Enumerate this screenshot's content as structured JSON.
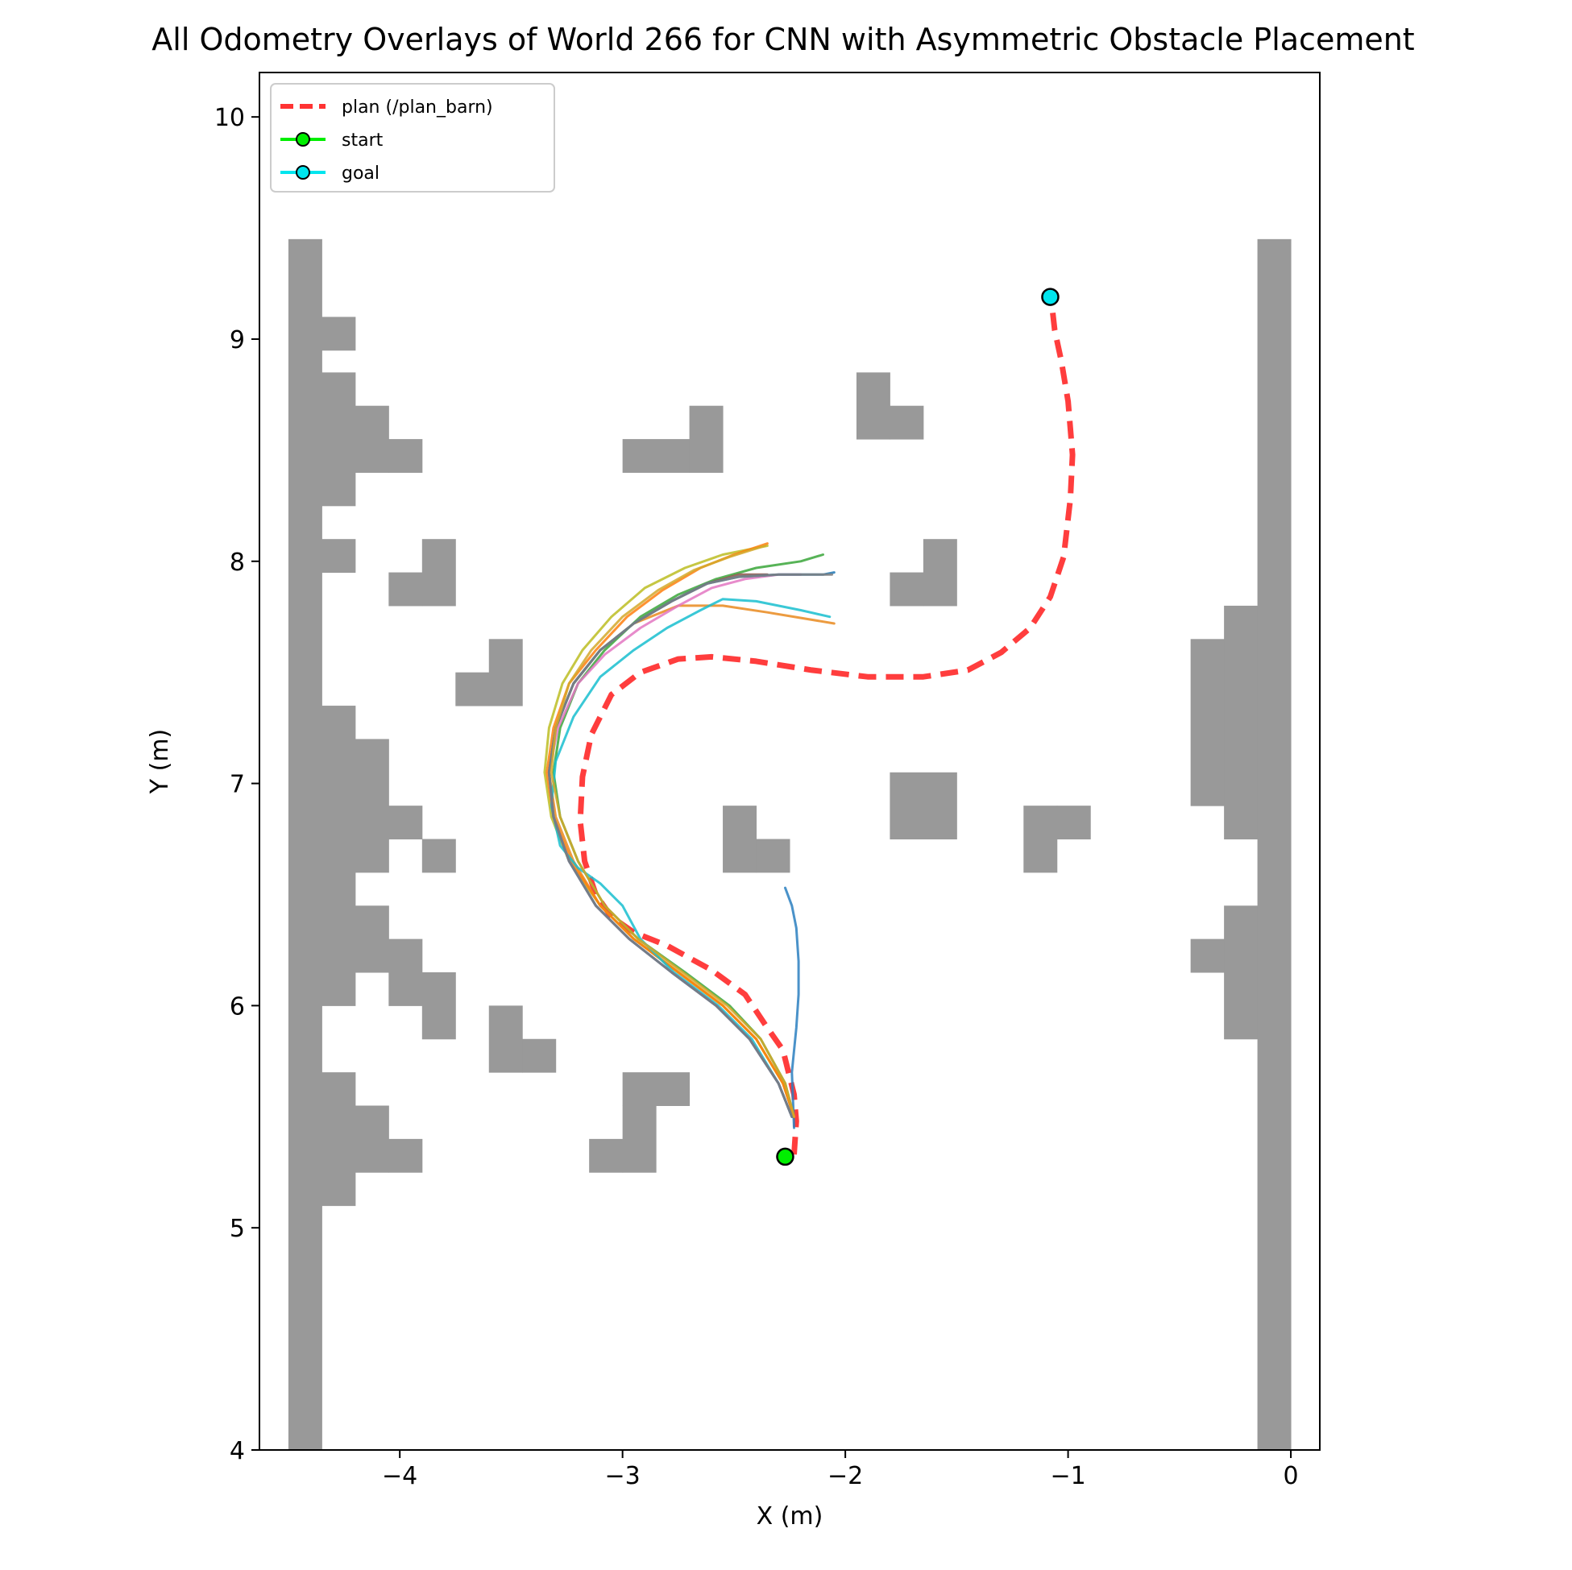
{
  "chart_data": {
    "type": "line",
    "title": "All Odometry Overlays of World 266 for CNN with Asymmetric Obstacle Placement",
    "xlabel": "X (m)",
    "ylabel": "Y (m)",
    "xlim": [
      -4.63,
      0.13
    ],
    "ylim": [
      4.0,
      10.2
    ],
    "x_ticks": [
      -4,
      -3,
      -2,
      -1,
      0
    ],
    "x_tick_labels": [
      "−4",
      "−3",
      "−2",
      "−1",
      "0"
    ],
    "y_ticks": [
      4,
      5,
      6,
      7,
      8,
      9,
      10
    ],
    "y_tick_labels": [
      "4",
      "5",
      "6",
      "7",
      "8",
      "9",
      "10"
    ],
    "grid": false,
    "legend": {
      "placement": "top-left",
      "entries": [
        {
          "label": "plan (/plan_barn)",
          "color": "#ff3333",
          "style": "dashed"
        },
        {
          "label": "start",
          "color": "#00ee00",
          "style": "line-marker"
        },
        {
          "label": "goal",
          "color": "#00e5ee",
          "style": "line-marker"
        }
      ]
    },
    "obstacle_color": "#999999",
    "obstacles": [
      [
        -4.5,
        4.0,
        0.15,
        5.45
      ],
      [
        -4.35,
        8.95,
        0.15,
        0.15
      ],
      [
        -4.35,
        8.25,
        0.15,
        0.6
      ],
      [
        -4.2,
        8.4,
        0.15,
        0.3
      ],
      [
        -4.05,
        8.4,
        0.15,
        0.15
      ],
      [
        -4.35,
        7.95,
        0.15,
        0.15
      ],
      [
        -4.05,
        7.8,
        0.15,
        0.15
      ],
      [
        -3.9,
        7.8,
        0.15,
        0.3
      ],
      [
        -3.75,
        7.35,
        0.15,
        0.15
      ],
      [
        -3.6,
        7.35,
        0.15,
        0.3
      ],
      [
        -3.0,
        8.4,
        0.3,
        0.15
      ],
      [
        -2.7,
        8.4,
        0.15,
        0.3
      ],
      [
        -1.95,
        8.55,
        0.15,
        0.3
      ],
      [
        -1.8,
        8.55,
        0.15,
        0.15
      ],
      [
        -1.8,
        7.8,
        0.15,
        0.15
      ],
      [
        -1.65,
        7.8,
        0.15,
        0.3
      ],
      [
        -4.35,
        6.6,
        0.15,
        0.75
      ],
      [
        -4.2,
        6.6,
        0.15,
        0.6
      ],
      [
        -4.05,
        6.75,
        0.15,
        0.15
      ],
      [
        -3.9,
        6.6,
        0.15,
        0.15
      ],
      [
        -2.55,
        6.6,
        0.15,
        0.3
      ],
      [
        -2.4,
        6.6,
        0.15,
        0.15
      ],
      [
        -1.8,
        6.75,
        0.3,
        0.3
      ],
      [
        -1.2,
        6.6,
        0.15,
        0.3
      ],
      [
        -1.05,
        6.75,
        0.15,
        0.15
      ],
      [
        -0.45,
        6.9,
        0.15,
        0.75
      ],
      [
        -0.3,
        6.75,
        0.15,
        1.05
      ],
      [
        -4.35,
        6.0,
        0.15,
        0.6
      ],
      [
        -4.2,
        6.15,
        0.15,
        0.3
      ],
      [
        -4.05,
        6.0,
        0.15,
        0.3
      ],
      [
        -3.9,
        5.85,
        0.15,
        0.3
      ],
      [
        -3.6,
        5.7,
        0.15,
        0.3
      ],
      [
        -3.45,
        5.7,
        0.15,
        0.15
      ],
      [
        -4.35,
        5.1,
        0.15,
        0.6
      ],
      [
        -4.2,
        5.25,
        0.15,
        0.3
      ],
      [
        -4.05,
        5.25,
        0.15,
        0.15
      ],
      [
        -3.0,
        5.55,
        0.3,
        0.15
      ],
      [
        -3.0,
        5.25,
        0.15,
        0.3
      ],
      [
        -2.85,
        5.25,
        0.0,
        0.0
      ],
      [
        -3.15,
        5.25,
        0.15,
        0.15
      ],
      [
        -0.45,
        6.15,
        0.15,
        0.15
      ],
      [
        -0.3,
        5.85,
        0.15,
        0.6
      ],
      [
        -0.15,
        4.0,
        0.15,
        5.45
      ]
    ],
    "plan": {
      "name": "plan (/plan_barn)",
      "color": "#ff3333",
      "x": [
        -2.23,
        -2.22,
        -2.23,
        -2.28,
        -2.35,
        -2.45,
        -2.6,
        -2.8,
        -2.95,
        -3.05,
        -3.12,
        -3.17,
        -3.19,
        -3.18,
        -3.14,
        -3.05,
        -2.92,
        -2.75,
        -2.6,
        -2.4,
        -2.15,
        -1.9,
        -1.65,
        -1.45,
        -1.3,
        -1.17,
        -1.08,
        -1.02,
        -0.99,
        -0.98,
        -1.0,
        -1.03,
        -1.06,
        -1.07
      ],
      "y": [
        5.33,
        5.48,
        5.6,
        5.8,
        5.9,
        6.05,
        6.16,
        6.27,
        6.33,
        6.4,
        6.5,
        6.65,
        6.83,
        7.03,
        7.22,
        7.4,
        7.5,
        7.56,
        7.57,
        7.55,
        7.51,
        7.48,
        7.48,
        7.51,
        7.59,
        7.7,
        7.84,
        8.02,
        8.28,
        8.48,
        8.72,
        8.9,
        9.04,
        9.13
      ]
    },
    "start": {
      "name": "start",
      "x": -2.27,
      "y": 5.32,
      "color": "#00ee00"
    },
    "goal": {
      "name": "goal",
      "x": -1.08,
      "y": 9.19,
      "color": "#00e5ee"
    },
    "series": [
      {
        "color": "#2a7fbf",
        "x": [
          -2.23,
          -2.24,
          -2.22,
          -2.21,
          -2.21,
          -2.22,
          -2.24,
          -2.27
        ],
        "y": [
          5.45,
          5.7,
          5.9,
          6.05,
          6.2,
          6.35,
          6.45,
          6.53
        ]
      },
      {
        "color": "#e98a1f",
        "x": [
          -2.23,
          -2.28,
          -2.4,
          -2.55,
          -2.75,
          -2.95,
          -3.1,
          -3.22,
          -3.3,
          -3.33,
          -3.3,
          -3.22,
          -3.1,
          -2.95,
          -2.75,
          -2.55,
          -2.35,
          -2.05
        ],
        "y": [
          5.5,
          5.65,
          5.85,
          6.0,
          6.15,
          6.3,
          6.45,
          6.65,
          6.85,
          7.05,
          7.25,
          7.45,
          7.6,
          7.72,
          7.8,
          7.8,
          7.77,
          7.72
        ]
      },
      {
        "color": "#3aa63a",
        "x": [
          -2.23,
          -2.27,
          -2.38,
          -2.52,
          -2.72,
          -2.93,
          -3.08,
          -3.2,
          -3.28,
          -3.31,
          -3.28,
          -3.2,
          -3.08,
          -2.92,
          -2.75,
          -2.58,
          -2.4,
          -2.2,
          -2.1
        ],
        "y": [
          5.5,
          5.65,
          5.85,
          6.0,
          6.15,
          6.3,
          6.45,
          6.65,
          6.85,
          7.05,
          7.25,
          7.45,
          7.6,
          7.75,
          7.85,
          7.92,
          7.97,
          8.0,
          8.03
        ]
      },
      {
        "color": "#bcbd22",
        "x": [
          -2.23,
          -2.28,
          -2.4,
          -2.55,
          -2.75,
          -2.95,
          -3.1,
          -3.24,
          -3.32,
          -3.35,
          -3.33,
          -3.27,
          -3.18,
          -3.05,
          -2.9,
          -2.72,
          -2.55,
          -2.35
        ],
        "y": [
          5.5,
          5.65,
          5.85,
          6.0,
          6.15,
          6.3,
          6.45,
          6.65,
          6.85,
          7.05,
          7.25,
          7.45,
          7.6,
          7.75,
          7.88,
          7.97,
          8.03,
          8.07
        ]
      },
      {
        "color": "#ff7f0e",
        "x": [
          -2.23,
          -2.28,
          -2.4,
          -2.55,
          -2.75,
          -2.95,
          -3.1,
          -3.23,
          -3.31,
          -3.34,
          -3.31,
          -3.24,
          -3.12,
          -2.98,
          -2.82,
          -2.65,
          -2.5,
          -2.35
        ],
        "y": [
          5.5,
          5.65,
          5.85,
          6.0,
          6.15,
          6.3,
          6.45,
          6.65,
          6.85,
          7.05,
          7.25,
          7.45,
          7.6,
          7.75,
          7.87,
          7.97,
          8.03,
          8.08
        ]
      },
      {
        "color": "#17becf",
        "x": [
          -2.24,
          -2.3,
          -2.42,
          -2.57,
          -2.77,
          -2.92,
          -3.0,
          -3.1,
          -3.2,
          -3.28,
          -3.32,
          -3.3,
          -3.22,
          -3.1,
          -2.95,
          -2.8,
          -2.65,
          -2.55,
          -2.4,
          -2.2,
          -2.07
        ],
        "y": [
          5.5,
          5.65,
          5.85,
          6.0,
          6.15,
          6.3,
          6.45,
          6.55,
          6.62,
          6.72,
          6.9,
          7.1,
          7.3,
          7.48,
          7.6,
          7.7,
          7.78,
          7.83,
          7.82,
          7.78,
          7.75
        ]
      },
      {
        "color": "#8c564b",
        "x": [
          -2.24,
          -2.3,
          -2.43,
          -2.58,
          -2.78,
          -2.97,
          -3.12,
          -3.24,
          -3.31,
          -3.33,
          -3.3,
          -3.22,
          -3.1,
          -2.95,
          -2.78,
          -2.62,
          -2.48,
          -2.35
        ],
        "y": [
          5.5,
          5.65,
          5.85,
          6.0,
          6.15,
          6.3,
          6.45,
          6.65,
          6.85,
          7.05,
          7.25,
          7.45,
          7.6,
          7.72,
          7.82,
          7.9,
          7.94,
          7.94
        ]
      },
      {
        "color": "#e377c2",
        "x": [
          -2.24,
          -2.3,
          -2.43,
          -2.58,
          -2.78,
          -2.97,
          -3.12,
          -3.24,
          -3.31,
          -3.33,
          -3.29,
          -3.2,
          -3.08,
          -2.92,
          -2.75,
          -2.6,
          -2.45,
          -2.3,
          -2.2
        ],
        "y": [
          5.5,
          5.65,
          5.85,
          6.0,
          6.15,
          6.3,
          6.45,
          6.65,
          6.85,
          7.05,
          7.25,
          7.45,
          7.58,
          7.7,
          7.8,
          7.88,
          7.92,
          7.94,
          7.94
        ]
      },
      {
        "color": "#1f77b4",
        "x": [
          -2.24,
          -2.3,
          -2.43,
          -2.58,
          -2.78,
          -2.97,
          -3.12,
          -3.24,
          -3.31,
          -3.33,
          -3.3,
          -3.22,
          -3.1,
          -2.95,
          -2.78,
          -2.62,
          -2.48,
          -2.3,
          -2.1,
          -2.05
        ],
        "y": [
          5.5,
          5.65,
          5.85,
          6.0,
          6.15,
          6.3,
          6.45,
          6.65,
          6.85,
          7.05,
          7.25,
          7.45,
          7.6,
          7.72,
          7.82,
          7.9,
          7.93,
          7.94,
          7.94,
          7.95
        ]
      },
      {
        "color": "#7f7f7f",
        "x": [
          -2.24,
          -2.3,
          -2.43,
          -2.58,
          -2.78,
          -2.97,
          -3.12,
          -3.24,
          -3.31,
          -3.33,
          -3.3,
          -3.22,
          -3.1,
          -2.95,
          -2.78,
          -2.62,
          -2.48,
          -2.3,
          -2.15,
          -2.06
        ],
        "y": [
          5.5,
          5.65,
          5.85,
          6.0,
          6.15,
          6.3,
          6.45,
          6.65,
          6.85,
          7.05,
          7.25,
          7.45,
          7.6,
          7.72,
          7.82,
          7.9,
          7.93,
          7.94,
          7.94,
          7.94
        ]
      },
      {
        "color": "#d4a82a",
        "x": [
          -2.23,
          -2.27,
          -2.38,
          -2.53,
          -2.73,
          -2.93,
          -3.08,
          -3.2,
          -3.28,
          -3.32,
          -3.3,
          -3.24,
          -3.14,
          -3.0,
          -2.84,
          -2.68,
          -2.52,
          -2.36
        ],
        "y": [
          5.5,
          5.65,
          5.85,
          6.0,
          6.15,
          6.3,
          6.45,
          6.65,
          6.85,
          7.05,
          7.25,
          7.45,
          7.6,
          7.75,
          7.87,
          7.96,
          8.02,
          8.07
        ]
      }
    ]
  }
}
